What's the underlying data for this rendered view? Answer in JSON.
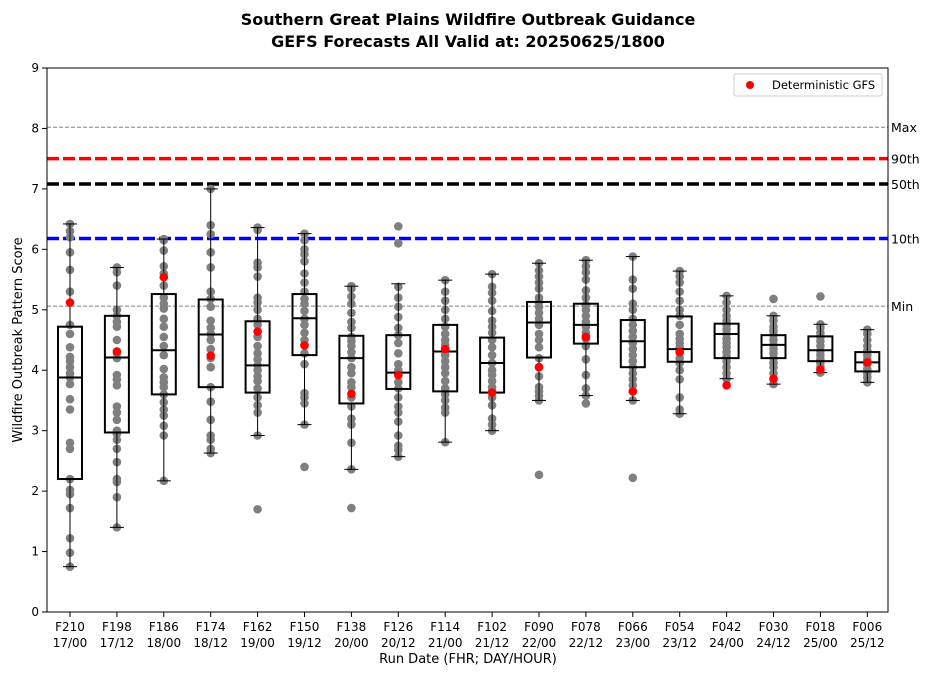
{
  "chart_data": {
    "type": "box",
    "title": "Southern Great Plains Wildfire Outbreak Guidance",
    "subtitle": "GEFS Forecasts All Valid at: 20250625/1800",
    "xlabel": "Run Date (FHR; DAY/HOUR)",
    "ylabel": "Wildfire Outbreak Pattern Score",
    "ylim": [
      0,
      9
    ],
    "yticks": [
      0,
      1,
      2,
      3,
      4,
      5,
      6,
      7,
      8,
      9
    ],
    "grid": false,
    "legend": {
      "position": "top-right",
      "entries": [
        "Deterministic GFS"
      ]
    },
    "colors": {
      "deterministic": "#ff0000",
      "members": "#7f7f7f",
      "p90": "#ff0000",
      "p50": "#000000",
      "p10": "#0000ff",
      "minmax": "#808080"
    },
    "categories": [
      {
        "fhr": "F210",
        "time": "17/00"
      },
      {
        "fhr": "F198",
        "time": "17/12"
      },
      {
        "fhr": "F186",
        "time": "18/00"
      },
      {
        "fhr": "F174",
        "time": "18/12"
      },
      {
        "fhr": "F162",
        "time": "19/00"
      },
      {
        "fhr": "F150",
        "time": "19/12"
      },
      {
        "fhr": "F138",
        "time": "20/00"
      },
      {
        "fhr": "F126",
        "time": "20/12"
      },
      {
        "fhr": "F114",
        "time": "21/00"
      },
      {
        "fhr": "F102",
        "time": "21/12"
      },
      {
        "fhr": "F090",
        "time": "22/00"
      },
      {
        "fhr": "F078",
        "time": "22/12"
      },
      {
        "fhr": "F066",
        "time": "23/00"
      },
      {
        "fhr": "F054",
        "time": "23/12"
      },
      {
        "fhr": "F042",
        "time": "24/00"
      },
      {
        "fhr": "F030",
        "time": "24/12"
      },
      {
        "fhr": "F018",
        "time": "25/00"
      },
      {
        "fhr": "F006",
        "time": "25/12"
      }
    ],
    "boxes": [
      {
        "whisker_low": 0.75,
        "q1": 2.2,
        "median": 3.88,
        "q3": 4.72,
        "whisker_high": 6.42
      },
      {
        "whisker_low": 1.4,
        "q1": 2.97,
        "median": 4.21,
        "q3": 4.9,
        "whisker_high": 5.7
      },
      {
        "whisker_low": 2.17,
        "q1": 3.6,
        "median": 4.33,
        "q3": 5.26,
        "whisker_high": 6.17
      },
      {
        "whisker_low": 2.63,
        "q1": 3.72,
        "median": 4.59,
        "q3": 5.17,
        "whisker_high": 7.0
      },
      {
        "whisker_low": 2.92,
        "q1": 3.63,
        "median": 4.08,
        "q3": 4.81,
        "whisker_high": 6.36
      },
      {
        "whisker_low": 3.1,
        "q1": 4.25,
        "median": 4.86,
        "q3": 5.26,
        "whisker_high": 6.26
      },
      {
        "whisker_low": 2.36,
        "q1": 3.45,
        "median": 4.2,
        "q3": 4.57,
        "whisker_high": 5.39
      },
      {
        "whisker_low": 2.57,
        "q1": 3.69,
        "median": 3.96,
        "q3": 4.58,
        "whisker_high": 5.43
      },
      {
        "whisker_low": 2.81,
        "q1": 3.65,
        "median": 4.31,
        "q3": 4.75,
        "whisker_high": 5.49
      },
      {
        "whisker_low": 3.0,
        "q1": 3.63,
        "median": 4.12,
        "q3": 4.54,
        "whisker_high": 5.59
      },
      {
        "whisker_low": 3.5,
        "q1": 4.21,
        "median": 4.79,
        "q3": 5.13,
        "whisker_high": 5.77
      },
      {
        "whisker_low": 3.58,
        "q1": 4.44,
        "median": 4.75,
        "q3": 5.1,
        "whisker_high": 5.82
      },
      {
        "whisker_low": 3.5,
        "q1": 4.05,
        "median": 4.48,
        "q3": 4.83,
        "whisker_high": 5.88
      },
      {
        "whisker_low": 3.28,
        "q1": 4.14,
        "median": 4.35,
        "q3": 4.89,
        "whisker_high": 5.64
      },
      {
        "whisker_low": 3.86,
        "q1": 4.2,
        "median": 4.6,
        "q3": 4.77,
        "whisker_high": 5.23
      },
      {
        "whisker_low": 3.77,
        "q1": 4.2,
        "median": 4.42,
        "q3": 4.58,
        "whisker_high": 4.9
      },
      {
        "whisker_low": 3.96,
        "q1": 4.15,
        "median": 4.33,
        "q3": 4.56,
        "whisker_high": 4.76
      },
      {
        "whisker_low": 3.8,
        "q1": 3.98,
        "median": 4.13,
        "q3": 4.3,
        "whisker_high": 4.67
      }
    ],
    "members": [
      [
        0.75,
        0.98,
        1.22,
        1.72,
        1.95,
        2.02,
        2.2,
        2.7,
        2.8,
        3.35,
        3.52,
        3.77,
        3.88,
        3.95,
        4.05,
        4.15,
        4.22,
        4.38,
        4.6,
        4.75,
        5.3,
        5.66,
        5.95,
        6.2,
        6.3,
        6.42
      ],
      [
        1.4,
        1.9,
        2.15,
        2.2,
        2.48,
        2.7,
        2.85,
        2.95,
        3.0,
        3.18,
        3.3,
        3.4,
        3.75,
        3.85,
        3.92,
        4.2,
        4.28,
        4.5,
        4.72,
        4.8,
        4.9,
        5.0,
        5.4,
        5.62,
        5.7
      ],
      [
        2.17,
        2.92,
        3.08,
        3.25,
        3.35,
        3.47,
        3.6,
        3.72,
        3.8,
        3.88,
        4.02,
        4.25,
        4.4,
        4.55,
        4.72,
        4.85,
        5.02,
        5.1,
        5.2,
        5.4,
        5.6,
        5.72,
        5.98,
        6.15,
        6.17
      ],
      [
        2.63,
        2.7,
        2.85,
        2.92,
        3.18,
        3.48,
        3.72,
        4.05,
        4.2,
        4.35,
        4.5,
        4.6,
        4.7,
        4.82,
        5.05,
        5.18,
        5.3,
        5.7,
        5.95,
        6.25,
        6.4,
        7.0
      ],
      [
        1.7,
        2.92,
        3.3,
        3.42,
        3.55,
        3.7,
        3.82,
        3.9,
        4.0,
        4.08,
        4.18,
        4.28,
        4.4,
        4.55,
        4.75,
        4.85,
        5.0,
        5.12,
        5.2,
        5.55,
        5.7,
        5.78,
        6.32,
        6.36
      ],
      [
        2.4,
        3.1,
        3.45,
        3.55,
        3.62,
        4.1,
        4.28,
        4.42,
        4.5,
        4.62,
        4.75,
        4.85,
        4.98,
        5.1,
        5.18,
        5.3,
        5.45,
        5.6,
        5.8,
        5.92,
        6.0,
        6.15,
        6.26
      ],
      [
        1.72,
        2.36,
        2.8,
        3.1,
        3.2,
        3.4,
        3.55,
        3.72,
        3.8,
        3.95,
        4.05,
        4.2,
        4.3,
        4.4,
        4.48,
        4.55,
        4.7,
        4.8,
        4.95,
        5.1,
        5.22,
        5.35,
        5.39
      ],
      [
        2.57,
        2.68,
        2.75,
        2.92,
        3.15,
        3.3,
        3.4,
        3.55,
        3.7,
        3.8,
        3.92,
        4.0,
        4.1,
        4.28,
        4.45,
        4.58,
        4.7,
        4.88,
        5.05,
        5.2,
        5.38,
        6.1,
        6.38
      ],
      [
        2.81,
        3.3,
        3.38,
        3.5,
        3.6,
        3.7,
        3.82,
        3.95,
        4.05,
        4.15,
        4.25,
        4.35,
        4.42,
        4.5,
        4.6,
        4.72,
        4.85,
        5.0,
        5.15,
        5.3,
        5.49
      ],
      [
        3.0,
        3.1,
        3.2,
        3.42,
        3.55,
        3.65,
        3.72,
        3.82,
        3.92,
        4.0,
        4.12,
        4.25,
        4.38,
        4.5,
        4.62,
        4.72,
        4.82,
        4.98,
        5.15,
        5.28,
        5.38,
        5.59
      ],
      [
        2.27,
        3.5,
        3.58,
        3.65,
        3.72,
        3.9,
        4.05,
        4.2,
        4.38,
        4.5,
        4.6,
        4.75,
        4.85,
        4.95,
        5.05,
        5.12,
        5.2,
        5.35,
        5.45,
        5.55,
        5.65,
        5.77
      ],
      [
        3.45,
        3.58,
        3.7,
        3.92,
        4.18,
        4.4,
        4.52,
        4.62,
        4.72,
        4.8,
        4.9,
        5.0,
        5.08,
        5.2,
        5.32,
        5.5,
        5.62,
        5.72,
        5.82
      ],
      [
        2.22,
        3.5,
        3.65,
        3.75,
        3.85,
        3.95,
        4.05,
        4.15,
        4.25,
        4.35,
        4.45,
        4.55,
        4.65,
        4.75,
        4.85,
        5.0,
        5.1,
        5.35,
        5.5,
        5.88
      ],
      [
        3.28,
        3.35,
        3.55,
        3.85,
        4.0,
        4.12,
        4.2,
        4.3,
        4.38,
        4.45,
        4.52,
        4.6,
        4.75,
        4.9,
        5.0,
        5.15,
        5.3,
        5.45,
        5.55,
        5.64
      ],
      [
        3.86,
        3.95,
        4.05,
        4.15,
        4.22,
        4.3,
        4.38,
        4.45,
        4.52,
        4.6,
        4.68,
        4.75,
        4.82,
        4.9,
        5.0,
        5.12,
        5.23
      ],
      [
        3.77,
        3.85,
        3.95,
        4.05,
        4.12,
        4.2,
        4.28,
        4.35,
        4.42,
        4.5,
        4.58,
        4.65,
        4.72,
        4.82,
        4.9,
        5.18
      ],
      [
        3.96,
        4.05,
        4.12,
        4.18,
        4.25,
        4.32,
        4.4,
        4.48,
        4.55,
        4.62,
        4.7,
        4.76,
        5.22
      ],
      [
        3.8,
        3.88,
        3.95,
        4.02,
        4.1,
        4.18,
        4.25,
        4.32,
        4.4,
        4.5,
        4.6,
        4.67
      ]
    ],
    "deterministic": [
      5.12,
      4.31,
      5.54,
      4.24,
      4.64,
      4.41,
      3.61,
      3.92,
      4.35,
      3.63,
      4.05,
      4.55,
      3.65,
      4.3,
      3.75,
      3.86,
      4.01,
      4.13
    ],
    "reference_lines": [
      {
        "label": "Max",
        "value": 8.02,
        "style": "thin-dashed",
        "color": "#808080"
      },
      {
        "label": "90th",
        "value": 7.5,
        "style": "thick-dashed",
        "color": "#ff0000"
      },
      {
        "label": "50th",
        "value": 7.08,
        "style": "thick-dashed",
        "color": "#000000"
      },
      {
        "label": "10th",
        "value": 6.18,
        "style": "thick-dashed",
        "color": "#0000ff"
      },
      {
        "label": "Min",
        "value": 5.06,
        "style": "thin-dashed",
        "color": "#808080"
      }
    ]
  }
}
